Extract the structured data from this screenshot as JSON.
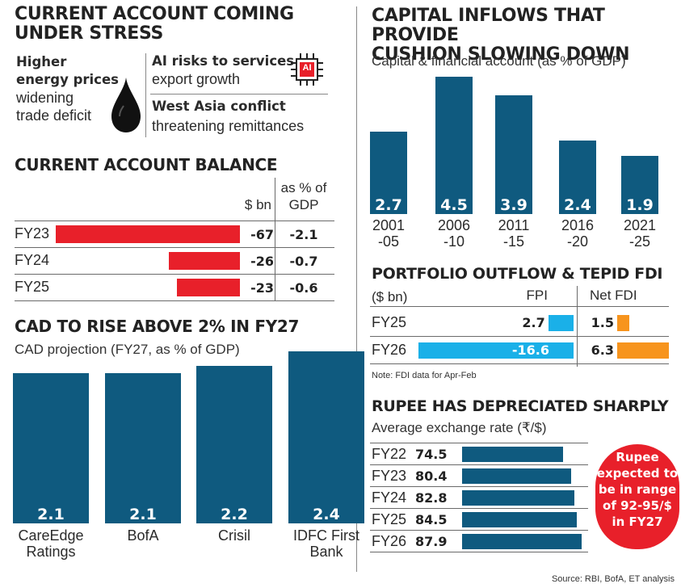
{
  "current_account": {
    "title_line1": "CURRENT ACCOUNT COMING",
    "title_line2": "UNDER STRESS",
    "item1_bold_line1": "Higher",
    "item1_bold_line2": "energy prices",
    "item1_rest_line1": "widening",
    "item1_rest_line2": "trade deficit",
    "item2_bold": "AI risks to services",
    "item2_rest": "export growth",
    "item3_bold": "West Asia conflict",
    "item3_rest": "threatening remittances",
    "chip_label": "AI",
    "icons": [
      "oil-drop-icon",
      "ai-chip-icon"
    ]
  },
  "chart_data": [
    {
      "id": "cab",
      "type": "bar",
      "title": "CURRENT ACCOUNT BALANCE",
      "col1_header": "$ bn",
      "col2_header_line1": "as % of",
      "col2_header_line2": "GDP",
      "categories": [
        "FY23",
        "FY24",
        "FY25"
      ],
      "values": [
        -67,
        -26,
        -23
      ],
      "pct_gdp": [
        -2.1,
        -0.7,
        -0.6
      ],
      "labels": [
        "-67",
        "-26",
        "-23"
      ],
      "pct_labels": [
        "-2.1",
        "-0.7",
        "-0.6"
      ],
      "color": "#e8202a"
    },
    {
      "id": "cad",
      "type": "bar",
      "title": "CAD TO RISE ABOVE 2% IN FY27",
      "subtitle": "CAD projection (FY27, as % of GDP)",
      "categories": [
        [
          "CareEdge",
          "Ratings"
        ],
        [
          "BofA"
        ],
        [
          "Crisil"
        ],
        [
          "IDFC First",
          "Bank"
        ]
      ],
      "values": [
        2.1,
        2.1,
        2.2,
        2.4
      ],
      "labels": [
        "2.1",
        "2.1",
        "2.2",
        "2.4"
      ],
      "color": "#0f5a7f"
    },
    {
      "id": "capital",
      "type": "bar",
      "title_line1": "CAPITAL INFLOWS THAT PROVIDE",
      "title_line2": "CUSHION SLOWING DOWN",
      "subtitle": "Capital & financial account (as % of GDP)",
      "categories": [
        [
          "2001",
          "-05"
        ],
        [
          "2006",
          "-10"
        ],
        [
          "2011",
          "-15"
        ],
        [
          "2016",
          "-20"
        ],
        [
          "2021",
          "-25"
        ]
      ],
      "values": [
        2.7,
        4.5,
        3.9,
        2.4,
        1.9
      ],
      "labels": [
        "2.7",
        "4.5",
        "3.9",
        "2.4",
        "1.9"
      ],
      "color": "#0f5a7f"
    },
    {
      "id": "portfolio",
      "type": "bar",
      "title": "PORTFOLIO OUTFLOW & TEPID FDI",
      "unit_label": "($ bn)",
      "categories": [
        "FY25",
        "FY26"
      ],
      "series": [
        {
          "name": "FPI",
          "values": [
            2.7,
            -16.6
          ],
          "labels": [
            "2.7",
            "-16.6"
          ],
          "color": "#1ab0e8"
        },
        {
          "name": "Net FDI",
          "values": [
            1.5,
            6.3
          ],
          "labels": [
            "1.5",
            "6.3"
          ],
          "color": "#f7941d"
        }
      ],
      "note": "Note: FDI data for Apr-Feb"
    },
    {
      "id": "rupee",
      "type": "bar",
      "title": "RUPEE HAS DEPRECIATED SHARPLY",
      "subtitle": "Average exchange rate (₹/$)",
      "categories": [
        "FY22",
        "FY23",
        "FY24",
        "FY25",
        "FY26"
      ],
      "values": [
        74.5,
        80.4,
        82.8,
        84.5,
        87.9
      ],
      "labels": [
        "74.5",
        "80.4",
        "82.8",
        "84.5",
        "87.9"
      ],
      "color": "#0f5a7f",
      "callout_lines": [
        "Rupee",
        "expected to",
        "be in range",
        "of 92-95/$",
        "in FY27"
      ],
      "callout_color": "#e8202a"
    }
  ],
  "source": "Source: RBI, BofA, ET analysis"
}
